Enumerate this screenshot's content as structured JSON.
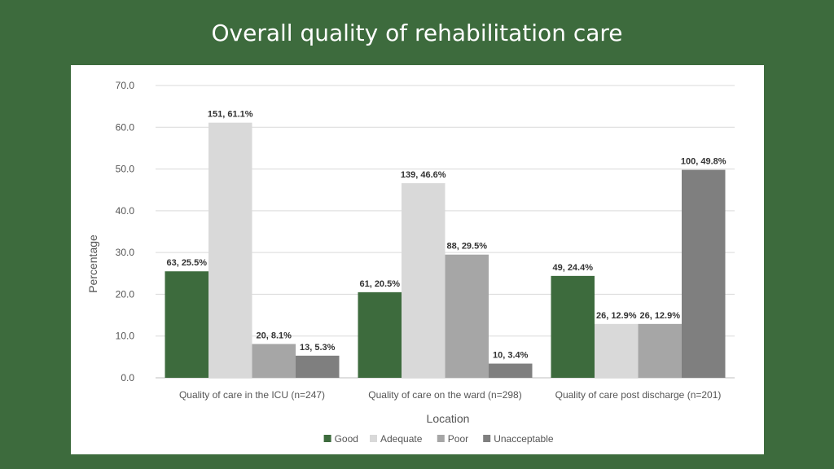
{
  "slide": {
    "title": "Overall quality of rehabilitation care"
  },
  "chart_data": {
    "type": "bar",
    "title": "",
    "xlabel": "Location",
    "ylabel": "Percentage",
    "ylim": [
      0,
      70
    ],
    "yticks": [
      "0.0",
      "10.0",
      "20.0",
      "30.0",
      "40.0",
      "50.0",
      "60.0",
      "70.0"
    ],
    "grid": true,
    "legend_position": "bottom",
    "categories": [
      "Quality of care in the ICU (n=247)",
      "Quality of care on the ward (n=298)",
      "Quality of care post discharge (n=201)"
    ],
    "series": [
      {
        "name": "Good",
        "color": "#3d6b3d",
        "values": [
          25.5,
          20.5,
          24.4
        ],
        "labels": [
          "63, 25.5%",
          "61, 20.5%",
          "49, 24.4%"
        ]
      },
      {
        "name": "Adequate",
        "color": "#d9d9d9",
        "values": [
          61.1,
          46.6,
          12.9
        ],
        "labels": [
          "151, 61.1%",
          "139, 46.6%",
          "26, 12.9%"
        ]
      },
      {
        "name": "Poor",
        "color": "#a6a6a6",
        "values": [
          8.1,
          29.5,
          12.9
        ],
        "labels": [
          "20, 8.1%",
          "88, 29.5%",
          "26, 12.9%"
        ]
      },
      {
        "name": "Unacceptable",
        "color": "#7f7f7f",
        "values": [
          5.3,
          3.4,
          49.8
        ],
        "labels": [
          "13, 5.3%",
          "10, 3.4%",
          "100, 49.8%"
        ]
      }
    ]
  }
}
